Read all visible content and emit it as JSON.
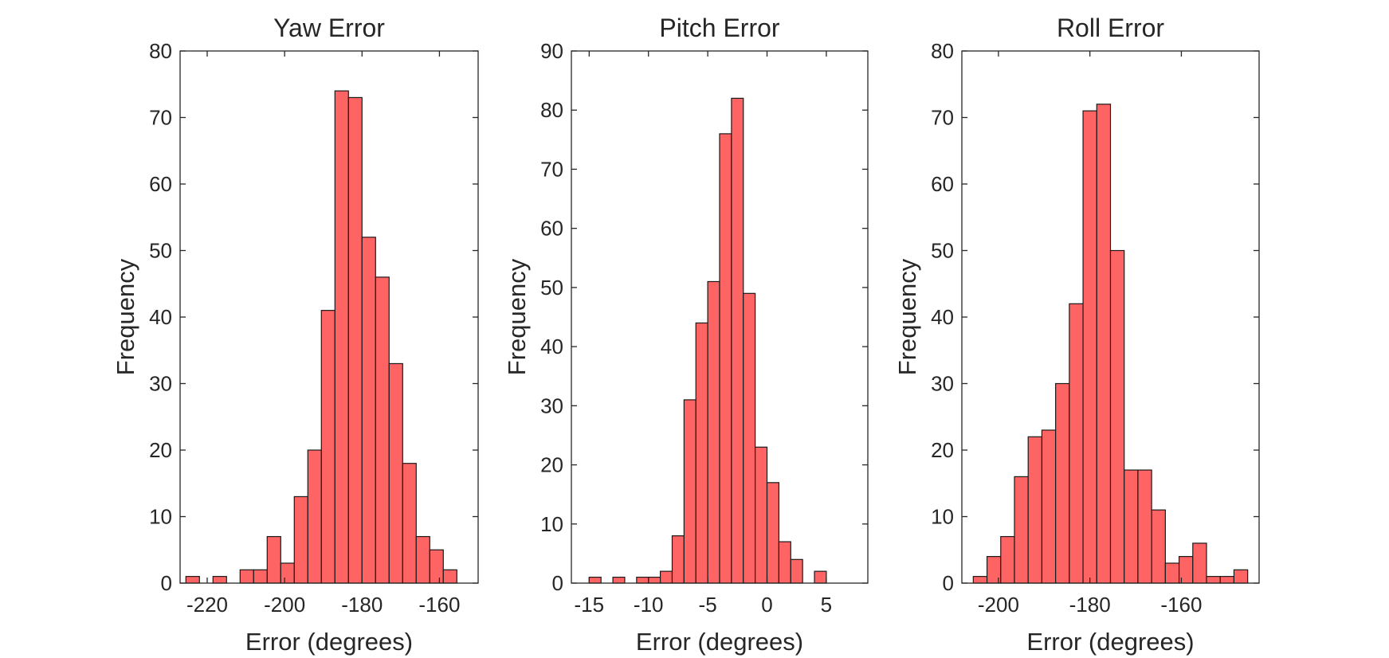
{
  "chart_data": [
    {
      "type": "histogram",
      "title": "Yaw Error",
      "xlabel": "Error (degrees)",
      "ylabel": "Frequency",
      "xlim": [
        -227,
        -150
      ],
      "ylim": [
        0,
        80
      ],
      "xticks": [
        -220,
        -200,
        -180,
        -160
      ],
      "yticks": [
        0,
        10,
        20,
        30,
        40,
        50,
        60,
        70,
        80
      ],
      "bin_width": 3.5,
      "bin_start": -225.5,
      "values": [
        1,
        0,
        1,
        0,
        2,
        2,
        7,
        3,
        13,
        20,
        41,
        74,
        73,
        52,
        46,
        33,
        18,
        7,
        5,
        2
      ],
      "bar_color": "#FF6464",
      "grid": false
    },
    {
      "type": "histogram",
      "title": "Pitch Error",
      "xlabel": "Error (degrees)",
      "ylabel": "Frequency",
      "xlim": [
        -16.5,
        8.5
      ],
      "ylim": [
        0,
        90
      ],
      "xticks": [
        -15,
        -10,
        -5,
        0,
        5
      ],
      "yticks": [
        0,
        10,
        20,
        30,
        40,
        50,
        60,
        70,
        80,
        90
      ],
      "bin_width": 1,
      "bin_start": -15,
      "values": [
        1,
        0,
        1,
        0,
        1,
        1,
        2,
        8,
        31,
        44,
        51,
        76,
        82,
        49,
        23,
        17,
        7,
        4,
        0,
        2
      ],
      "bar_color": "#FF6464",
      "grid": false
    },
    {
      "type": "histogram",
      "title": "Roll Error",
      "xlabel": "Error (degrees)",
      "ylabel": "Frequency",
      "xlim": [
        -208,
        -143
      ],
      "ylim": [
        0,
        80
      ],
      "xticks": [
        -200,
        -180,
        -160
      ],
      "yticks": [
        0,
        10,
        20,
        30,
        40,
        50,
        60,
        70,
        80
      ],
      "bin_width": 3,
      "bin_start": -205.5,
      "values": [
        1,
        4,
        7,
        16,
        22,
        23,
        30,
        42,
        71,
        72,
        50,
        17,
        17,
        11,
        3,
        4,
        6,
        1,
        1,
        2
      ],
      "bar_color": "#FF6464",
      "grid": false
    }
  ]
}
